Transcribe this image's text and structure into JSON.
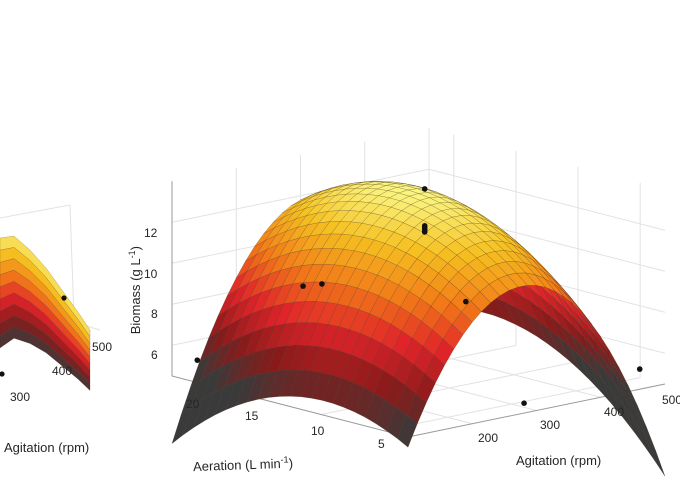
{
  "chart_data": [
    {
      "type": "surface",
      "note_visible": "left panel partially cropped",
      "xlabel": "Agitation (rpm)",
      "x_ticks": [
        "300",
        "400",
        "500"
      ]
    },
    {
      "type": "surface",
      "zlabel_main": "Biomass (g L",
      "zlabel_sup": "-1",
      "zlabel_tail": ")",
      "xlabel_main": "Aeration (L min",
      "xlabel_sup": "-1",
      "xlabel_tail": ")",
      "ylabel": "Agitation (rpm)",
      "z_ticks": [
        "6",
        "8",
        "10",
        "12"
      ],
      "aeration_ticks": [
        "20",
        "15",
        "10",
        "5"
      ],
      "agitation_ticks": [
        "200",
        "300",
        "400",
        "500"
      ],
      "z_range": [
        4.5,
        14
      ],
      "aeration_range": [
        3,
        22
      ],
      "agitation_range": [
        100,
        500
      ],
      "colormap": [
        "#3a3a3a",
        "#8b1a1a",
        "#e0242a",
        "#f27a18",
        "#f5c020",
        "#fbfb8c"
      ],
      "grid": true,
      "points": [
        {
          "aeration": 21,
          "agitation": 120,
          "biomass": 5.3
        },
        {
          "aeration": 13,
          "agitation": 130,
          "biomass": 10.1
        },
        {
          "aeration": 12,
          "agitation": 140,
          "biomass": 10.3
        },
        {
          "aeration": 12,
          "agitation": 300,
          "biomass": 13.9
        },
        {
          "aeration": 12,
          "agitation": 300,
          "biomass": 11.8
        },
        {
          "aeration": 12,
          "agitation": 300,
          "biomass": 12.0
        },
        {
          "aeration": 12,
          "agitation": 300,
          "biomass": 12.1
        },
        {
          "aeration": 12,
          "agitation": 300,
          "biomass": 11.9
        },
        {
          "aeration": 18,
          "agitation": 480,
          "biomass": 6.3
        },
        {
          "aeration": 4,
          "agitation": 480,
          "biomass": 5.2
        },
        {
          "aeration": 4,
          "agitation": 300,
          "biomass": 4.7
        }
      ]
    }
  ]
}
